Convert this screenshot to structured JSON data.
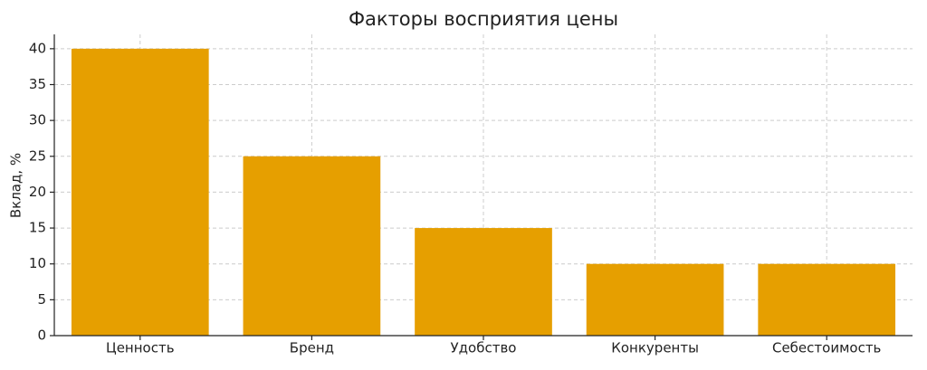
{
  "chart_data": {
    "type": "bar",
    "title": "Факторы восприятия цены",
    "y_label": "Вклад, %",
    "categories": [
      "Ценность",
      "Бренд",
      "Удобство",
      "Конкуренты",
      "Себестоимость"
    ],
    "values": [
      40,
      25,
      15,
      10,
      10
    ],
    "color": "#e69f00",
    "ylim": [
      0,
      42
    ],
    "yticks": [
      0,
      5,
      10,
      15,
      20,
      25,
      30,
      35,
      40
    ],
    "grid": true
  }
}
